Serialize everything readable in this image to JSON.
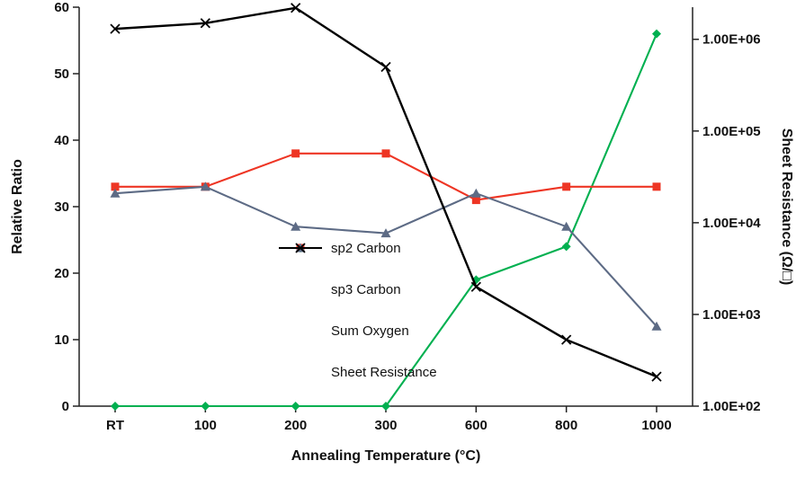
{
  "page": {
    "background": "#ffffff",
    "text_color": "#1a1a1a"
  },
  "chart_data": {
    "type": "line",
    "title": "",
    "categories": [
      "RT",
      "100",
      "200",
      "300",
      "600",
      "800",
      "1000"
    ],
    "xlabel": "Annealing Temperature (°C)",
    "ylabel_left": "Relative Ratio",
    "ylabel_right": "Sheet Resistance (Ω/□)",
    "grid": false,
    "legend_position": "inside-center-left",
    "left_axis": {
      "min": 0,
      "max": 60,
      "ticks": [
        0,
        10,
        20,
        30,
        40,
        50,
        60
      ]
    },
    "right_axis": {
      "scale": "log",
      "min": 100,
      "max": 2240000,
      "ticks": [
        {
          "label": "1.00E+02",
          "value": 100
        },
        {
          "label": "1.00E+03",
          "value": 1000
        },
        {
          "label": "1.00E+04",
          "value": 10000
        },
        {
          "label": "1.00E+05",
          "value": 100000
        },
        {
          "label": "1.00E+06",
          "value": 1000000
        }
      ]
    },
    "series": [
      {
        "name": "sp2 Carbon",
        "axis": "left",
        "color": "#00b050",
        "marker": "diamond",
        "values": [
          0,
          0,
          0,
          0,
          19,
          24,
          56
        ]
      },
      {
        "name": "sp3 Carbon",
        "axis": "left",
        "color": "#ee3524",
        "marker": "square",
        "values": [
          33,
          33,
          38,
          38,
          31,
          33,
          33
        ]
      },
      {
        "name": "Sum Oxygen",
        "axis": "left",
        "color": "#5d6b85",
        "marker": "triangle",
        "values": [
          32,
          33,
          27,
          26,
          32,
          27,
          12
        ]
      },
      {
        "name": "Sheet Resistance",
        "axis": "right",
        "color": "#000000",
        "marker": "x",
        "values": [
          1300000,
          1500000,
          2200000,
          500000,
          2000,
          530,
          210
        ]
      }
    ]
  }
}
